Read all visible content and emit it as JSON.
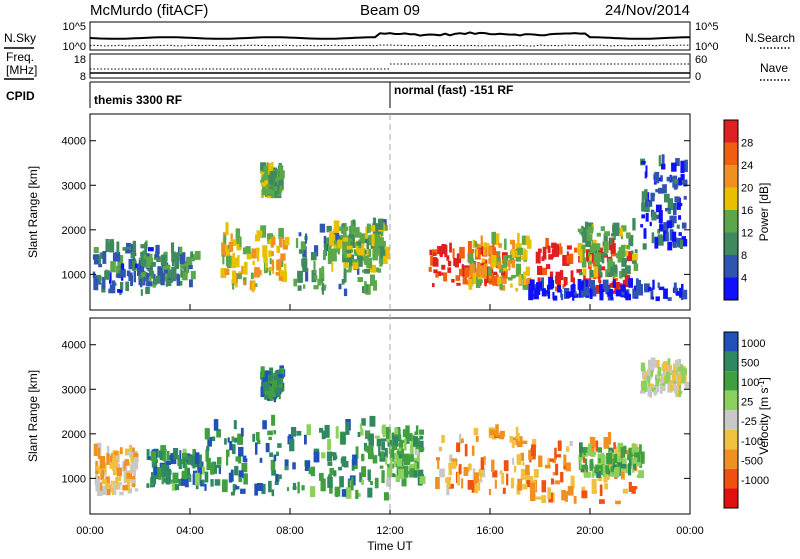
{
  "header": {
    "station": "McMurdo (fitACF)",
    "beam": "Beam 09",
    "date": "24/Nov/2014"
  },
  "strips": {
    "nsky_label": "N.Sky",
    "nsearch_label": "N.Search",
    "noise_ticks": [
      "10^5",
      "10^0"
    ],
    "freq_label_1": "Freq.",
    "freq_label_2": "[MHz]",
    "freq_ticks": [
      "18",
      "8"
    ],
    "nave_label": "Nave",
    "nave_ticks": [
      "60",
      "0"
    ],
    "cpid_label": "CPID",
    "cpid_modes": [
      "themis 3300 RF",
      "normal (fast) -151 RF"
    ]
  },
  "colors": {
    "power_scale": [
      "#1010ff",
      "#2f55b0",
      "#3e8a5e",
      "#5aa84a",
      "#e8c000",
      "#f09020",
      "#f06010",
      "#e02020"
    ],
    "velocity_scale": [
      "#2050b8",
      "#308860",
      "#40a040",
      "#8cd060",
      "#c8c8c8",
      "#f0c040",
      "#f09020",
      "#f05010",
      "#e01010"
    ]
  },
  "chart_data": [
    {
      "type": "heatmap",
      "name": "power",
      "ylabel": "Slant Range [km]",
      "ylim": [
        200,
        4600
      ],
      "yticks": [
        1000,
        2000,
        3000,
        4000
      ],
      "xlim": [
        0,
        24
      ],
      "colorbar_label": "Power [dB]",
      "colorbar_ticks": [
        4,
        8,
        12,
        16,
        20,
        24,
        28
      ],
      "colorbar_range": [
        0,
        32
      ],
      "regions": [
        {
          "x": [
            0.1,
            2.4
          ],
          "y": [
            500,
            1600
          ],
          "level": 0.25
        },
        {
          "x": [
            2.0,
            4.2
          ],
          "y": [
            700,
            1500
          ],
          "level": 0.3
        },
        {
          "x": [
            5.2,
            7.8
          ],
          "y": [
            600,
            1900
          ],
          "level": 0.55
        },
        {
          "x": [
            6.8,
            7.6
          ],
          "y": [
            2700,
            3300
          ],
          "level": 0.4
        },
        {
          "x": [
            8.0,
            11.8
          ],
          "y": [
            500,
            2000
          ],
          "level": 0.35
        },
        {
          "x": [
            9.5,
            11.8
          ],
          "y": [
            1000,
            2000
          ],
          "level": 0.45
        },
        {
          "x": [
            13.5,
            16.5
          ],
          "y": [
            700,
            1500
          ],
          "level": 0.9
        },
        {
          "x": [
            15.0,
            17.5
          ],
          "y": [
            600,
            1700
          ],
          "level": 0.55
        },
        {
          "x": [
            17.8,
            21.5
          ],
          "y": [
            550,
            1600
          ],
          "level": 0.95
        },
        {
          "x": [
            19.5,
            21.8
          ],
          "y": [
            900,
            2000
          ],
          "level": 0.4
        },
        {
          "x": [
            22.0,
            23.8
          ],
          "y": [
            1500,
            3500
          ],
          "level": 0.15
        },
        {
          "x": [
            17.5,
            23.8
          ],
          "y": [
            400,
            700
          ],
          "level": 0.1
        }
      ]
    },
    {
      "type": "heatmap",
      "name": "velocity",
      "ylabel": "Slant Range [km]",
      "ylim": [
        200,
        4600
      ],
      "yticks": [
        1000,
        2000,
        3000,
        4000
      ],
      "xlim": [
        0,
        24
      ],
      "xlabel": "Time UT",
      "xticks": [
        "00:00",
        "04:00",
        "08:00",
        "12:00",
        "16:00",
        "20:00",
        "00:00"
      ],
      "colorbar_label": "Velocity [m s",
      "colorbar_units_exp": "-1",
      "colorbar_label_end": "]",
      "colorbar_ticks": [
        "1000",
        "500",
        "100",
        "25",
        "-25",
        "-100",
        "-500",
        "-1000"
      ],
      "regions": [
        {
          "x": [
            0.1,
            1.8
          ],
          "y": [
            600,
            1600
          ],
          "level": 0.62
        },
        {
          "x": [
            2.2,
            4.5
          ],
          "y": [
            700,
            1500
          ],
          "level": 0.2
        },
        {
          "x": [
            4.5,
            8.5
          ],
          "y": [
            600,
            2200
          ],
          "level": 0.18
        },
        {
          "x": [
            6.8,
            7.6
          ],
          "y": [
            2700,
            3300
          ],
          "level": 0.2
        },
        {
          "x": [
            8.5,
            11.8
          ],
          "y": [
            500,
            2200
          ],
          "level": 0.22
        },
        {
          "x": [
            11.8,
            13.2
          ],
          "y": [
            800,
            2000
          ],
          "level": 0.3
        },
        {
          "x": [
            13.8,
            17.5
          ],
          "y": [
            600,
            2000
          ],
          "level": 0.68
        },
        {
          "x": [
            17.5,
            21.8
          ],
          "y": [
            400,
            1800
          ],
          "level": 0.7
        },
        {
          "x": [
            19.5,
            22.0
          ],
          "y": [
            1000,
            1600
          ],
          "level": 0.3
        },
        {
          "x": [
            22.0,
            23.8
          ],
          "y": [
            2800,
            3500
          ],
          "level": 0.5
        }
      ]
    }
  ]
}
